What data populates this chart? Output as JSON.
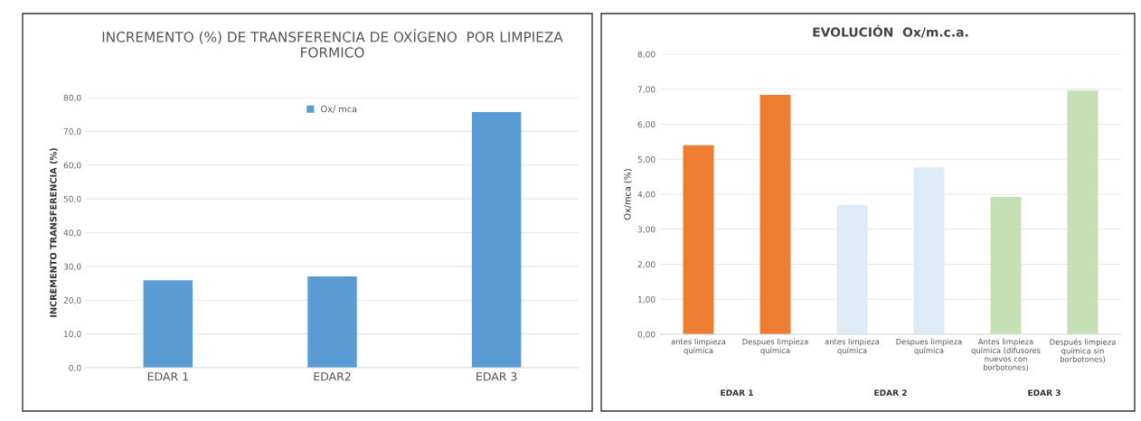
{
  "chart_data": [
    {
      "type": "bar",
      "title": "INCREMENTO (%) DE TRANSFERENCIA DE OXÍGENO  POR LIMPIEZA FORMICO",
      "ylabel": "INCREMENTO TRANSFERENCIA (%)",
      "categories": [
        "EDAR 1",
        "EDAR2",
        "EDAR 3"
      ],
      "series": [
        {
          "name": "Ox/ mca",
          "color": "#5b9bd5",
          "values": [
            25.9,
            27.0,
            75.7
          ]
        }
      ],
      "ylim": [
        0,
        80
      ],
      "yticks": [
        {
          "value": 0,
          "label": "0,0"
        },
        {
          "value": 10,
          "label": "10,0"
        },
        {
          "value": 20,
          "label": "20,0"
        },
        {
          "value": 30,
          "label": "30,0"
        },
        {
          "value": 40,
          "label": "40,0"
        },
        {
          "value": 50,
          "label": "50,0"
        },
        {
          "value": 60,
          "label": "60,0"
        },
        {
          "value": 70,
          "label": "70,0"
        },
        {
          "value": 80,
          "label": "80,0"
        }
      ],
      "grid": "y",
      "legend": "top"
    },
    {
      "type": "bar",
      "title": "EVOLUCIÓN  Ox/m.c.a.",
      "ylabel": "Ox/mca (%)",
      "categories": [
        "antes limpieza química",
        "Despues limpieza química",
        "antes limpieza química",
        "Despues limpieza química",
        "Antes limpieza química (difusores nuevos con borbotones)",
        "Después limpieza química sin borbotones)"
      ],
      "values": [
        5.4,
        6.84,
        3.7,
        4.77,
        3.92,
        6.96
      ],
      "colors": [
        "#ed7d31",
        "#ed7d31",
        "#ddebf7",
        "#ddebf7",
        "#c5e0b4",
        "#c5e0b4"
      ],
      "ylim": [
        0,
        8
      ],
      "yticks": [
        {
          "value": 0,
          "label": "0,00"
        },
        {
          "value": 1,
          "label": "1,00"
        },
        {
          "value": 2,
          "label": "2,00"
        },
        {
          "value": 3,
          "label": "3,00"
        },
        {
          "value": 4,
          "label": "4,00"
        },
        {
          "value": 5,
          "label": "5,00"
        },
        {
          "value": 6,
          "label": "6,00"
        },
        {
          "value": 7,
          "label": "7,00"
        },
        {
          "value": 8,
          "label": "8,00"
        }
      ],
      "grid": "y",
      "annotations": [
        "EDAR 1",
        "EDAR 2",
        "EDAR 3"
      ]
    }
  ]
}
